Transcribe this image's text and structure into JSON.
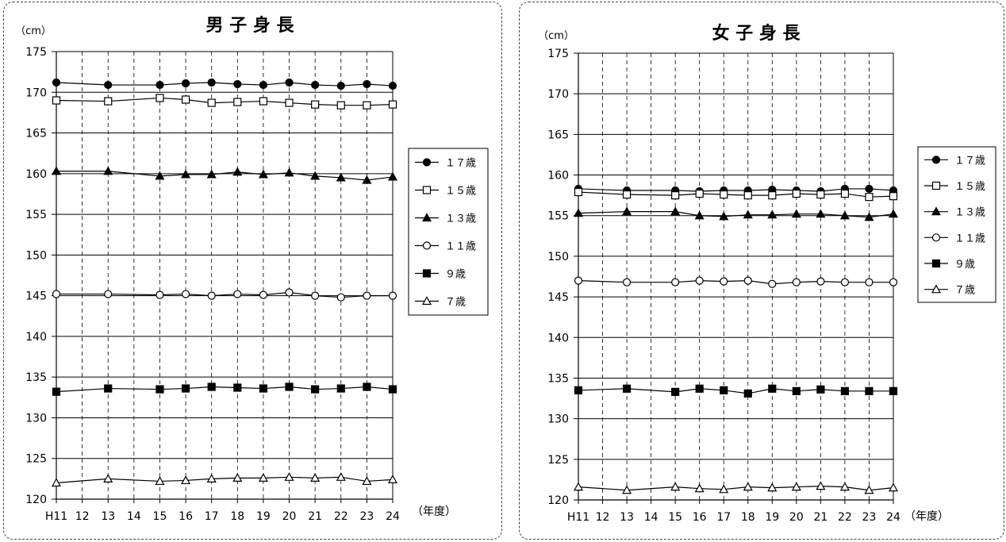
{
  "chart_data": [
    {
      "type": "line",
      "title": "男 子 身 長",
      "unit_label": "（cm）",
      "xlabel": "（年度）",
      "categories": [
        "H11",
        "12",
        "13",
        "14",
        "15",
        "16",
        "17",
        "18",
        "19",
        "20",
        "21",
        "22",
        "23",
        "24"
      ],
      "y_ticks": [
        175,
        170,
        165,
        160,
        155,
        150,
        145,
        140,
        135,
        130,
        125,
        120
      ],
      "ylim": [
        120,
        175
      ],
      "grid": true,
      "legend_position": "right",
      "series": [
        {
          "name": "１７歳",
          "marker": "circle-filled",
          "values": [
            171.2,
            null,
            170.9,
            null,
            170.9,
            171.1,
            171.2,
            171.0,
            170.9,
            171.2,
            170.9,
            170.8,
            171.0,
            170.8
          ]
        },
        {
          "name": "１５歳",
          "marker": "square-open",
          "values": [
            169.0,
            null,
            168.9,
            null,
            169.3,
            169.1,
            168.7,
            168.8,
            168.9,
            168.7,
            168.5,
            168.4,
            168.4,
            168.5
          ]
        },
        {
          "name": "１３歳",
          "marker": "triangle-filled",
          "values": [
            160.3,
            null,
            160.3,
            null,
            159.7,
            159.9,
            159.9,
            160.2,
            159.9,
            160.1,
            159.7,
            159.5,
            159.2,
            159.6
          ]
        },
        {
          "name": "１１歳",
          "marker": "circle-open",
          "values": [
            145.2,
            null,
            145.2,
            null,
            145.1,
            145.2,
            145.0,
            145.2,
            145.1,
            145.4,
            145.0,
            144.8,
            145.0,
            145.0
          ]
        },
        {
          "name": "９歳",
          "marker": "square-filled",
          "values": [
            133.2,
            null,
            133.6,
            null,
            133.5,
            133.6,
            133.8,
            133.7,
            133.6,
            133.8,
            133.5,
            133.6,
            133.8,
            133.5
          ]
        },
        {
          "name": "７歳",
          "marker": "triangle-open",
          "values": [
            122.0,
            null,
            122.5,
            null,
            122.2,
            122.3,
            122.5,
            122.6,
            122.6,
            122.7,
            122.6,
            122.7,
            122.2,
            122.4
          ]
        }
      ]
    },
    {
      "type": "line",
      "title": "女 子 身 長",
      "unit_label": "（cm）",
      "xlabel": "（年度）",
      "categories": [
        "H11",
        "12",
        "13",
        "14",
        "15",
        "16",
        "17",
        "18",
        "19",
        "20",
        "21",
        "22",
        "23",
        "24"
      ],
      "y_ticks": [
        175,
        170,
        165,
        160,
        155,
        150,
        145,
        140,
        135,
        130,
        125,
        120
      ],
      "ylim": [
        120,
        175
      ],
      "grid": true,
      "legend_position": "right",
      "series": [
        {
          "name": "１７歳",
          "marker": "circle-filled",
          "values": [
            158.3,
            null,
            158.1,
            null,
            158.1,
            158.0,
            158.1,
            158.1,
            158.2,
            158.1,
            158.0,
            158.3,
            158.3,
            158.1
          ]
        },
        {
          "name": "１５歳",
          "marker": "square-open",
          "values": [
            157.9,
            null,
            157.6,
            null,
            157.5,
            157.7,
            157.6,
            157.5,
            157.5,
            157.7,
            157.6,
            157.7,
            157.3,
            157.4
          ]
        },
        {
          "name": "１３歳",
          "marker": "triangle-filled",
          "values": [
            155.3,
            null,
            155.5,
            null,
            155.5,
            155.0,
            154.9,
            155.1,
            155.1,
            155.2,
            155.2,
            155.0,
            154.8,
            155.2
          ]
        },
        {
          "name": "１１歳",
          "marker": "circle-open",
          "values": [
            147.0,
            null,
            146.8,
            null,
            146.8,
            147.0,
            146.9,
            147.0,
            146.6,
            146.8,
            146.9,
            146.8,
            146.8,
            146.8
          ]
        },
        {
          "name": "９歳",
          "marker": "square-filled",
          "values": [
            133.5,
            null,
            133.7,
            null,
            133.3,
            133.7,
            133.5,
            133.1,
            133.7,
            133.4,
            133.6,
            133.4,
            133.4,
            133.4
          ]
        },
        {
          "name": "７歳",
          "marker": "triangle-open",
          "values": [
            121.6,
            null,
            121.2,
            null,
            121.6,
            121.4,
            121.3,
            121.6,
            121.5,
            121.6,
            121.7,
            121.6,
            121.2,
            121.5
          ]
        }
      ]
    }
  ]
}
